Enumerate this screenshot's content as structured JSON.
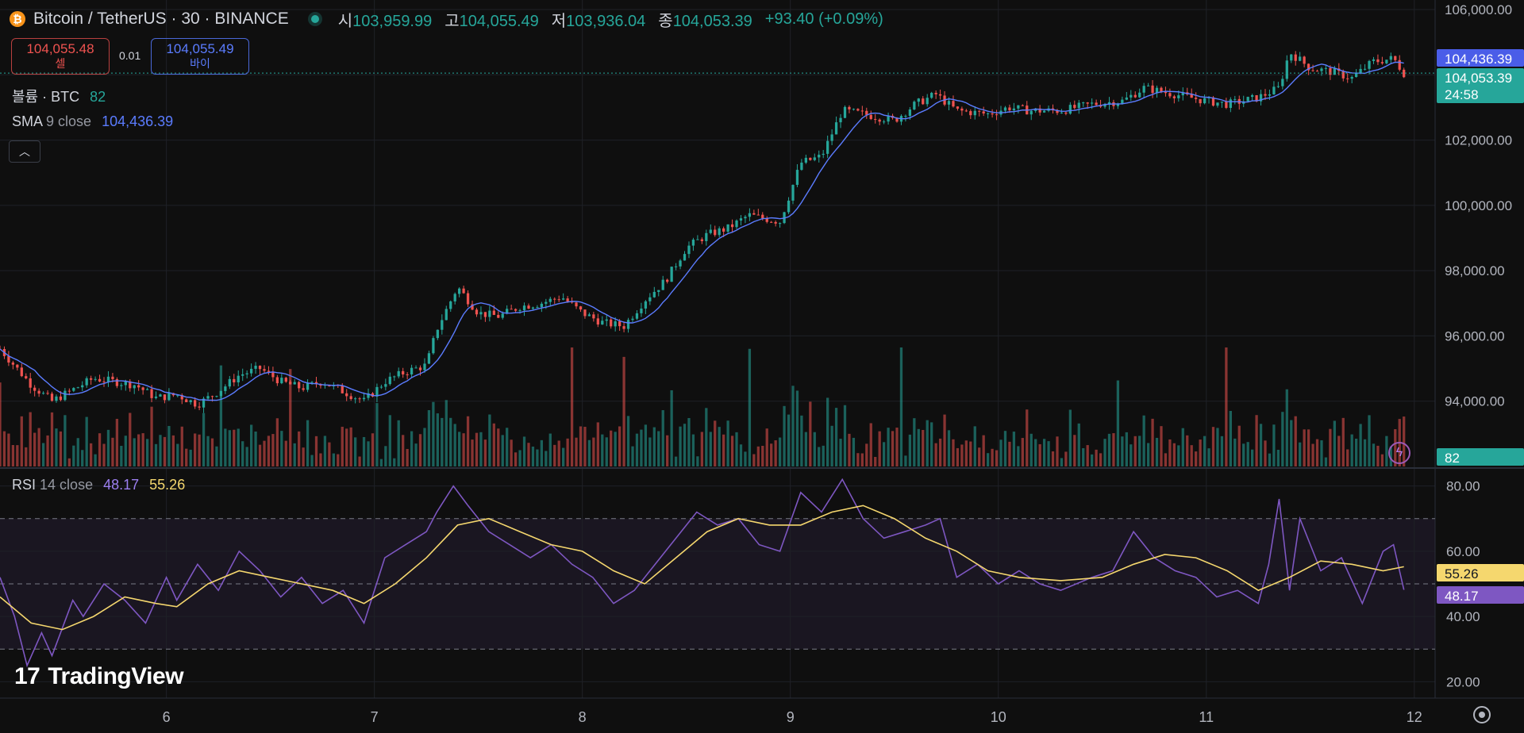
{
  "header": {
    "icon": "bitcoin-icon",
    "title": "Bitcoin / TetherUS · 30 · BINANCE",
    "open_label": "시",
    "open": "103,959.99",
    "high_label": "고",
    "high": "104,055.49",
    "low_label": "저",
    "low": "103,936.04",
    "close_label": "종",
    "close": "104,053.39",
    "change": "+93.40 (+0.09%)"
  },
  "trade": {
    "sell_price": "104,055.48",
    "sell_label": "셀",
    "spread": "0.01",
    "buy_price": "104,055.49",
    "buy_label": "바이"
  },
  "legend": {
    "volume_label": "볼륨 · BTC",
    "volume_value": "82",
    "sma_name": "SMA",
    "sma_params": "9 close",
    "sma_value": "104,436.39",
    "rsi_name": "RSI",
    "rsi_params": "14 close",
    "rsi_value": "48.17",
    "rsi_ma_value": "55.26"
  },
  "colors": {
    "up": "#26a69a",
    "down": "#ef5350",
    "sma": "#5b7cff",
    "rsi": "#7e57c2",
    "rsi_ma": "#f5d76e",
    "background": "#0f0f0f",
    "grid": "#1f2127"
  },
  "price_labels": {
    "sma": "104,436.39",
    "close": "104,053.39",
    "countdown": "24:58",
    "volume": "82",
    "rsi_ma": "55.26",
    "rsi": "48.17"
  },
  "logo": "TradingView",
  "chart_data": [
    {
      "type": "candlestick",
      "title": "Bitcoin / TetherUS · 30 · BINANCE",
      "x_ticks": [
        "6",
        "7",
        "8",
        "9",
        "10",
        "11",
        "12"
      ],
      "y_ticks": [
        "94,000.00",
        "96,000.00",
        "98,000.00",
        "100,000.00",
        "102,000.00",
        "104,000.00",
        "106,000.00"
      ],
      "ylim": [
        92000,
        106000
      ],
      "xlim": [
        5.2,
        12.1
      ],
      "close_path": [
        [
          5.2,
          95600
        ],
        [
          5.35,
          94500
        ],
        [
          5.45,
          94000
        ],
        [
          5.55,
          94350
        ],
        [
          5.65,
          94700
        ],
        [
          5.85,
          94500
        ],
        [
          5.95,
          94100
        ],
        [
          6.05,
          94200
        ],
        [
          6.15,
          93900
        ],
        [
          6.25,
          94300
        ],
        [
          6.35,
          94800
        ],
        [
          6.45,
          95000
        ],
        [
          6.55,
          94600
        ],
        [
          6.65,
          94400
        ],
        [
          6.75,
          94600
        ],
        [
          6.85,
          94300
        ],
        [
          6.95,
          94000
        ],
        [
          7.05,
          94600
        ],
        [
          7.15,
          94900
        ],
        [
          7.25,
          95100
        ],
        [
          7.3,
          96200
        ],
        [
          7.4,
          97500
        ],
        [
          7.5,
          96700
        ],
        [
          7.6,
          96600
        ],
        [
          7.7,
          96900
        ],
        [
          7.8,
          97000
        ],
        [
          7.9,
          97200
        ],
        [
          8.0,
          96700
        ],
        [
          8.1,
          96400
        ],
        [
          8.2,
          96300
        ],
        [
          8.3,
          97100
        ],
        [
          8.4,
          97700
        ],
        [
          8.5,
          98700
        ],
        [
          8.6,
          99100
        ],
        [
          8.7,
          99300
        ],
        [
          8.8,
          99700
        ],
        [
          8.95,
          99500
        ],
        [
          9.05,
          101300
        ],
        [
          9.15,
          101500
        ],
        [
          9.25,
          102900
        ],
        [
          9.35,
          102800
        ],
        [
          9.5,
          102600
        ],
        [
          9.6,
          103100
        ],
        [
          9.7,
          103400
        ],
        [
          9.8,
          102900
        ],
        [
          9.95,
          102800
        ],
        [
          10.05,
          103000
        ],
        [
          10.15,
          102900
        ],
        [
          10.3,
          102900
        ],
        [
          10.45,
          103100
        ],
        [
          10.6,
          103200
        ],
        [
          10.7,
          103600
        ],
        [
          10.85,
          103400
        ],
        [
          11.0,
          103200
        ],
        [
          11.1,
          103100
        ],
        [
          11.25,
          103300
        ],
        [
          11.35,
          103600
        ],
        [
          11.4,
          104700
        ],
        [
          11.5,
          104200
        ],
        [
          11.6,
          104100
        ],
        [
          11.7,
          103900
        ],
        [
          11.8,
          104400
        ],
        [
          11.9,
          104500
        ],
        [
          11.95,
          104053
        ]
      ]
    },
    {
      "type": "line",
      "name": "SMA 9 close",
      "last": 104436.39
    },
    {
      "type": "bar",
      "name": "볼륨 · BTC",
      "last": 82
    },
    {
      "type": "line",
      "title": "RSI 14 close",
      "y_ticks": [
        "20.00",
        "40.00",
        "60.00",
        "80.00"
      ],
      "ylim": [
        15,
        85
      ],
      "bands": [
        30,
        50,
        70
      ],
      "series": [
        {
          "name": "RSI",
          "last": 48.17,
          "values": [
            [
              5.2,
              52
            ],
            [
              5.27,
              40
            ],
            [
              5.33,
              25
            ],
            [
              5.4,
              35
            ],
            [
              5.45,
              28
            ],
            [
              5.55,
              45
            ],
            [
              5.6,
              40
            ],
            [
              5.7,
              50
            ],
            [
              5.8,
              45
            ],
            [
              5.9,
              38
            ],
            [
              6.0,
              52
            ],
            [
              6.05,
              45
            ],
            [
              6.15,
              56
            ],
            [
              6.25,
              48
            ],
            [
              6.35,
              60
            ],
            [
              6.45,
              54
            ],
            [
              6.55,
              46
            ],
            [
              6.65,
              52
            ],
            [
              6.75,
              44
            ],
            [
              6.85,
              48
            ],
            [
              6.95,
              38
            ],
            [
              7.05,
              58
            ],
            [
              7.15,
              62
            ],
            [
              7.25,
              66
            ],
            [
              7.3,
              72
            ],
            [
              7.38,
              80
            ],
            [
              7.45,
              74
            ],
            [
              7.55,
              66
            ],
            [
              7.65,
              62
            ],
            [
              7.75,
              58
            ],
            [
              7.85,
              62
            ],
            [
              7.95,
              56
            ],
            [
              8.05,
              52
            ],
            [
              8.15,
              44
            ],
            [
              8.25,
              48
            ],
            [
              8.35,
              56
            ],
            [
              8.45,
              64
            ],
            [
              8.55,
              72
            ],
            [
              8.65,
              68
            ],
            [
              8.75,
              70
            ],
            [
              8.85,
              62
            ],
            [
              8.95,
              60
            ],
            [
              9.05,
              78
            ],
            [
              9.15,
              72
            ],
            [
              9.25,
              82
            ],
            [
              9.35,
              70
            ],
            [
              9.45,
              64
            ],
            [
              9.55,
              66
            ],
            [
              9.65,
              68
            ],
            [
              9.72,
              70
            ],
            [
              9.8,
              52
            ],
            [
              9.9,
              56
            ],
            [
              10.0,
              50
            ],
            [
              10.1,
              54
            ],
            [
              10.2,
              50
            ],
            [
              10.3,
              48
            ],
            [
              10.45,
              52
            ],
            [
              10.55,
              54
            ],
            [
              10.65,
              66
            ],
            [
              10.75,
              58
            ],
            [
              10.85,
              54
            ],
            [
              10.95,
              52
            ],
            [
              11.05,
              46
            ],
            [
              11.15,
              48
            ],
            [
              11.25,
              44
            ],
            [
              11.3,
              56
            ],
            [
              11.35,
              76
            ],
            [
              11.4,
              48
            ],
            [
              11.45,
              70
            ],
            [
              11.55,
              54
            ],
            [
              11.65,
              58
            ],
            [
              11.75,
              44
            ],
            [
              11.85,
              60
            ],
            [
              11.9,
              62
            ],
            [
              11.95,
              48.17
            ]
          ]
        },
        {
          "name": "RSI MA",
          "last": 55.26,
          "values": [
            [
              5.2,
              46
            ],
            [
              5.35,
              38
            ],
            [
              5.5,
              36
            ],
            [
              5.65,
              40
            ],
            [
              5.8,
              46
            ],
            [
              5.95,
              44
            ],
            [
              6.05,
              43
            ],
            [
              6.2,
              50
            ],
            [
              6.35,
              54
            ],
            [
              6.5,
              52
            ],
            [
              6.65,
              50
            ],
            [
              6.8,
              48
            ],
            [
              6.95,
              44
            ],
            [
              7.1,
              50
            ],
            [
              7.25,
              58
            ],
            [
              7.4,
              68
            ],
            [
              7.55,
              70
            ],
            [
              7.7,
              66
            ],
            [
              7.85,
              62
            ],
            [
              8.0,
              60
            ],
            [
              8.15,
              54
            ],
            [
              8.3,
              50
            ],
            [
              8.45,
              58
            ],
            [
              8.6,
              66
            ],
            [
              8.75,
              70
            ],
            [
              8.9,
              68
            ],
            [
              9.05,
              68
            ],
            [
              9.2,
              72
            ],
            [
              9.35,
              74
            ],
            [
              9.5,
              70
            ],
            [
              9.65,
              64
            ],
            [
              9.8,
              60
            ],
            [
              9.95,
              54
            ],
            [
              10.1,
              52
            ],
            [
              10.3,
              51
            ],
            [
              10.5,
              52
            ],
            [
              10.65,
              56
            ],
            [
              10.8,
              59
            ],
            [
              10.95,
              58
            ],
            [
              11.1,
              54
            ],
            [
              11.25,
              48
            ],
            [
              11.4,
              52
            ],
            [
              11.55,
              57
            ],
            [
              11.7,
              56
            ],
            [
              11.85,
              54
            ],
            [
              11.95,
              55.26
            ]
          ]
        }
      ]
    }
  ]
}
